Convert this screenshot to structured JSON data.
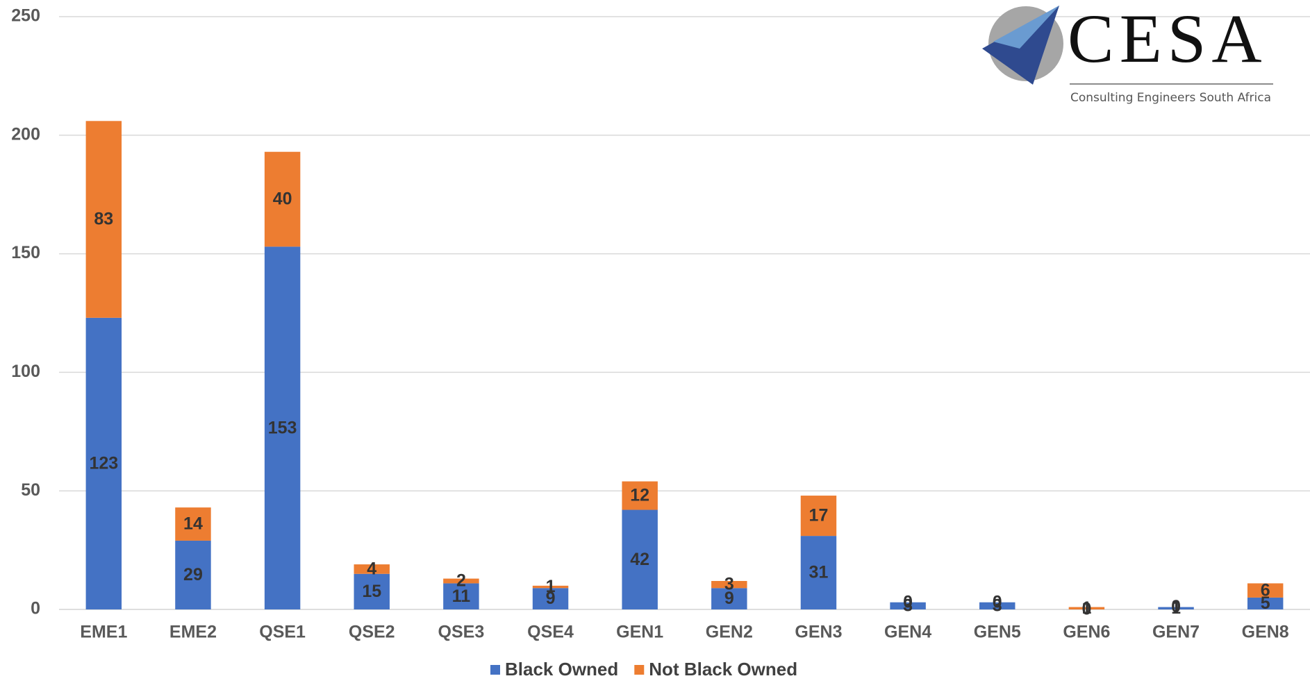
{
  "chart_data": {
    "type": "stacked_bar",
    "categories": [
      "EME1",
      "EME2",
      "QSE1",
      "QSE2",
      "QSE3",
      "QSE4",
      "GEN1",
      "GEN2",
      "GEN3",
      "GEN4",
      "GEN5",
      "GEN6",
      "GEN7",
      "GEN8"
    ],
    "series": [
      {
        "name": "Black Owned",
        "color": "#4472c4",
        "values": [
          123,
          29,
          153,
          15,
          11,
          9,
          42,
          9,
          31,
          3,
          3,
          0,
          1,
          5
        ]
      },
      {
        "name": "Not Black Owned",
        "color": "#ed7d31",
        "values": [
          83,
          14,
          40,
          4,
          2,
          1,
          12,
          3,
          17,
          0,
          0,
          1,
          0,
          6
        ]
      }
    ],
    "ylim": [
      0,
      250
    ],
    "yticks": [
      0,
      50,
      100,
      150,
      200,
      250
    ],
    "grid": true,
    "legend": "bottom"
  },
  "logo": {
    "name": "CESA",
    "tagline": "Consulting Engineers South Africa"
  }
}
